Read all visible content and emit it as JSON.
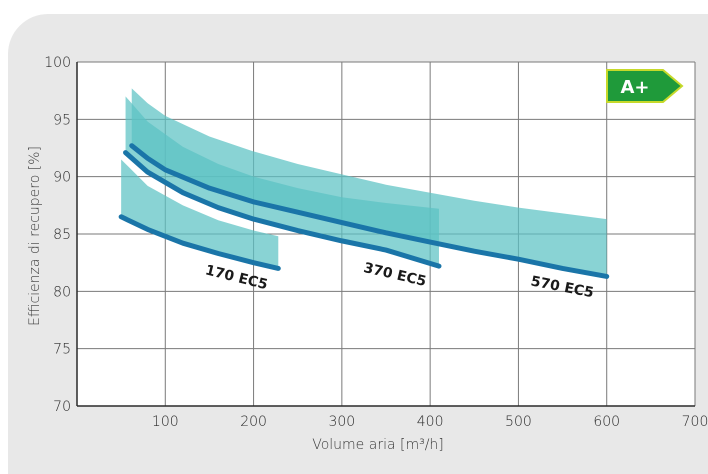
{
  "chart_data": {
    "type": "area",
    "xlabel": "Volume aria [m³/h]",
    "ylabel": "Efficienza di recupero [%]",
    "xlim": [
      0,
      700
    ],
    "ylim": [
      70,
      100
    ],
    "xticks": [
      100,
      200,
      300,
      400,
      500,
      600,
      700
    ],
    "yticks": [
      70,
      75,
      80,
      85,
      90,
      95,
      100
    ],
    "grid": true,
    "badge": {
      "label": "A+",
      "color": "#1f9a3a",
      "border_color": "#c6d92a"
    },
    "colors": {
      "band": "#5cc2c4",
      "curve": "#1a75a8",
      "grid": "#7a7a7a"
    },
    "series": [
      {
        "name": "170 EC5",
        "x": [
          50,
          228
        ],
        "curve": [
          [
            50,
            86.5
          ],
          [
            80,
            85.4
          ],
          [
            120,
            84.2
          ],
          [
            160,
            83.3
          ],
          [
            200,
            82.5
          ],
          [
            228,
            82.0
          ]
        ],
        "band_upper": [
          [
            50,
            91.5
          ],
          [
            80,
            89.2
          ],
          [
            120,
            87.5
          ],
          [
            160,
            86.2
          ],
          [
            200,
            85.3
          ],
          [
            228,
            84.8
          ]
        ],
        "band_lower": [
          [
            50,
            86.5
          ],
          [
            80,
            85.4
          ],
          [
            120,
            84.2
          ],
          [
            160,
            83.3
          ],
          [
            200,
            82.5
          ],
          [
            228,
            82.0
          ]
        ]
      },
      {
        "name": "370 EC5",
        "x": [
          55,
          410
        ],
        "curve": [
          [
            55,
            92.1
          ],
          [
            80,
            90.4
          ],
          [
            120,
            88.6
          ],
          [
            160,
            87.3
          ],
          [
            200,
            86.3
          ],
          [
            250,
            85.3
          ],
          [
            300,
            84.4
          ],
          [
            350,
            83.6
          ],
          [
            410,
            82.2
          ]
        ],
        "band_upper": [
          [
            55,
            97.0
          ],
          [
            80,
            94.8
          ],
          [
            120,
            92.6
          ],
          [
            160,
            91.1
          ],
          [
            200,
            90.0
          ],
          [
            250,
            89.0
          ],
          [
            300,
            88.2
          ],
          [
            350,
            87.7
          ],
          [
            410,
            87.2
          ]
        ],
        "band_lower": [
          [
            55,
            92.1
          ],
          [
            80,
            90.4
          ],
          [
            120,
            88.6
          ],
          [
            160,
            87.3
          ],
          [
            200,
            86.3
          ],
          [
            250,
            85.3
          ],
          [
            300,
            84.4
          ],
          [
            350,
            83.6
          ],
          [
            410,
            82.2
          ]
        ]
      },
      {
        "name": "570 EC5",
        "x": [
          62,
          600
        ],
        "curve": [
          [
            62,
            92.7
          ],
          [
            80,
            91.6
          ],
          [
            100,
            90.6
          ],
          [
            150,
            89.0
          ],
          [
            200,
            87.8
          ],
          [
            250,
            86.9
          ],
          [
            300,
            86.0
          ],
          [
            350,
            85.1
          ],
          [
            400,
            84.3
          ],
          [
            450,
            83.5
          ],
          [
            500,
            82.8
          ],
          [
            550,
            82.0
          ],
          [
            600,
            81.3
          ]
        ],
        "band_upper": [
          [
            62,
            97.7
          ],
          [
            80,
            96.4
          ],
          [
            100,
            95.3
          ],
          [
            150,
            93.5
          ],
          [
            200,
            92.2
          ],
          [
            250,
            91.1
          ],
          [
            300,
            90.2
          ],
          [
            350,
            89.3
          ],
          [
            400,
            88.6
          ],
          [
            450,
            87.9
          ],
          [
            500,
            87.3
          ],
          [
            550,
            86.8
          ],
          [
            600,
            86.3
          ]
        ],
        "band_lower": [
          [
            62,
            92.7
          ],
          [
            80,
            91.6
          ],
          [
            100,
            90.6
          ],
          [
            150,
            89.0
          ],
          [
            200,
            87.8
          ],
          [
            250,
            86.9
          ],
          [
            300,
            86.0
          ],
          [
            350,
            85.1
          ],
          [
            400,
            84.3
          ],
          [
            450,
            83.5
          ],
          [
            500,
            82.8
          ],
          [
            550,
            82.0
          ],
          [
            600,
            81.3
          ]
        ]
      }
    ]
  }
}
